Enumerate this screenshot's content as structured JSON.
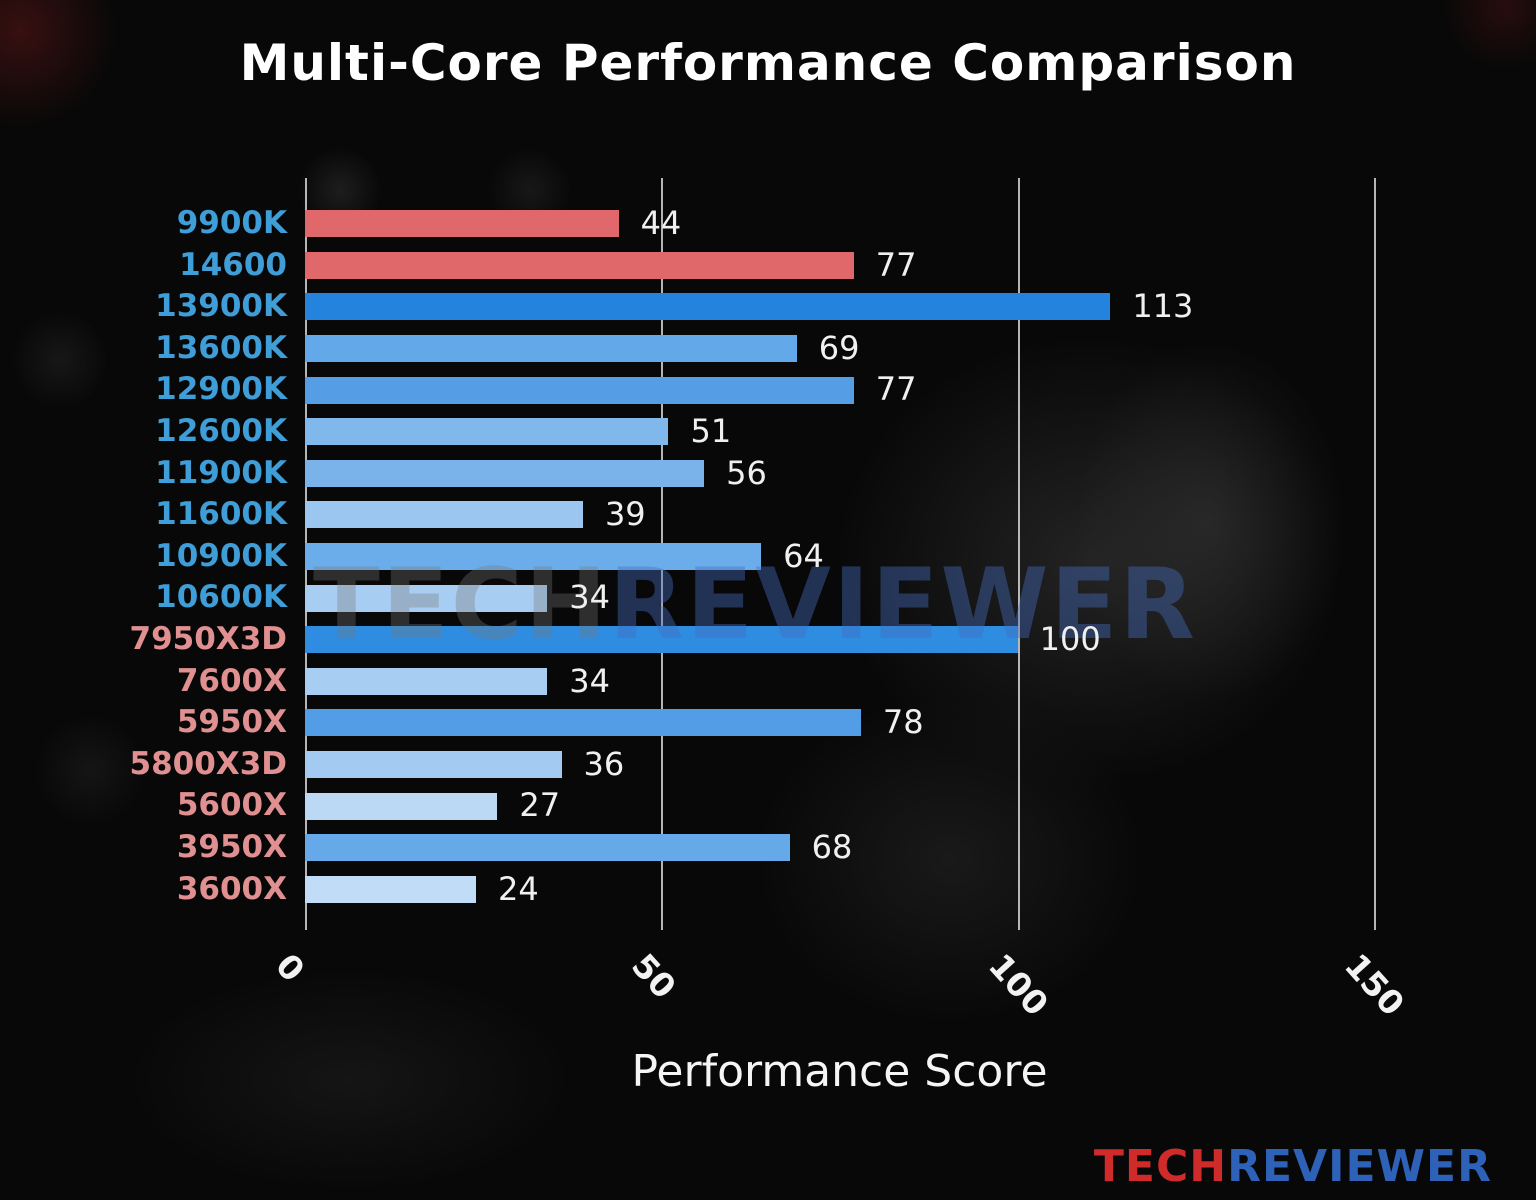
{
  "watermark": {
    "tech": "TECH",
    "reviewer": "REVIEWER"
  },
  "logo": {
    "tech": "TECH",
    "reviewer": "REVIEWER"
  },
  "chart_data": {
    "type": "bar",
    "orientation": "horizontal",
    "title": "Multi-Core Performance Comparison",
    "xlabel": "Performance Score",
    "xlim": [
      0,
      150
    ],
    "xticks": [
      0,
      50,
      100,
      150
    ],
    "grid": true,
    "legend": false,
    "categories": [
      "9900K",
      "14600",
      "13900K",
      "13600K",
      "12900K",
      "12600K",
      "11900K",
      "11600K",
      "10900K",
      "10600K",
      "7950X3D",
      "7600X",
      "5950X",
      "5800X3D",
      "5600X",
      "3950X",
      "3600X"
    ],
    "values": [
      44,
      77,
      113,
      69,
      77,
      51,
      56,
      39,
      64,
      34,
      100,
      34,
      78,
      36,
      27,
      68,
      24
    ],
    "bar_colors": [
      "#e0686b",
      "#e0686b",
      "#2383dd",
      "#63a8e8",
      "#559ee6",
      "#81b8ec",
      "#79b3ea",
      "#9bc6f0",
      "#6badea",
      "#a7cdf2",
      "#2e8ce1",
      "#a7cdf2",
      "#539de6",
      "#a3cbf1",
      "#bbd8f5",
      "#65a9e8",
      "#c1dcf6"
    ],
    "label_colors": [
      "#3f9ed8",
      "#3f9ed8",
      "#3f9ed8",
      "#3f9ed8",
      "#3f9ed8",
      "#3f9ed8",
      "#3f9ed8",
      "#3f9ed8",
      "#3f9ed8",
      "#3f9ed8",
      "#e09090",
      "#e09090",
      "#e09090",
      "#e09090",
      "#e09090",
      "#e09090",
      "#e09090"
    ],
    "value_label_color": "#f0f0f0",
    "tick_label_color": "#f2f2f2",
    "title_color": "#ffffff"
  }
}
